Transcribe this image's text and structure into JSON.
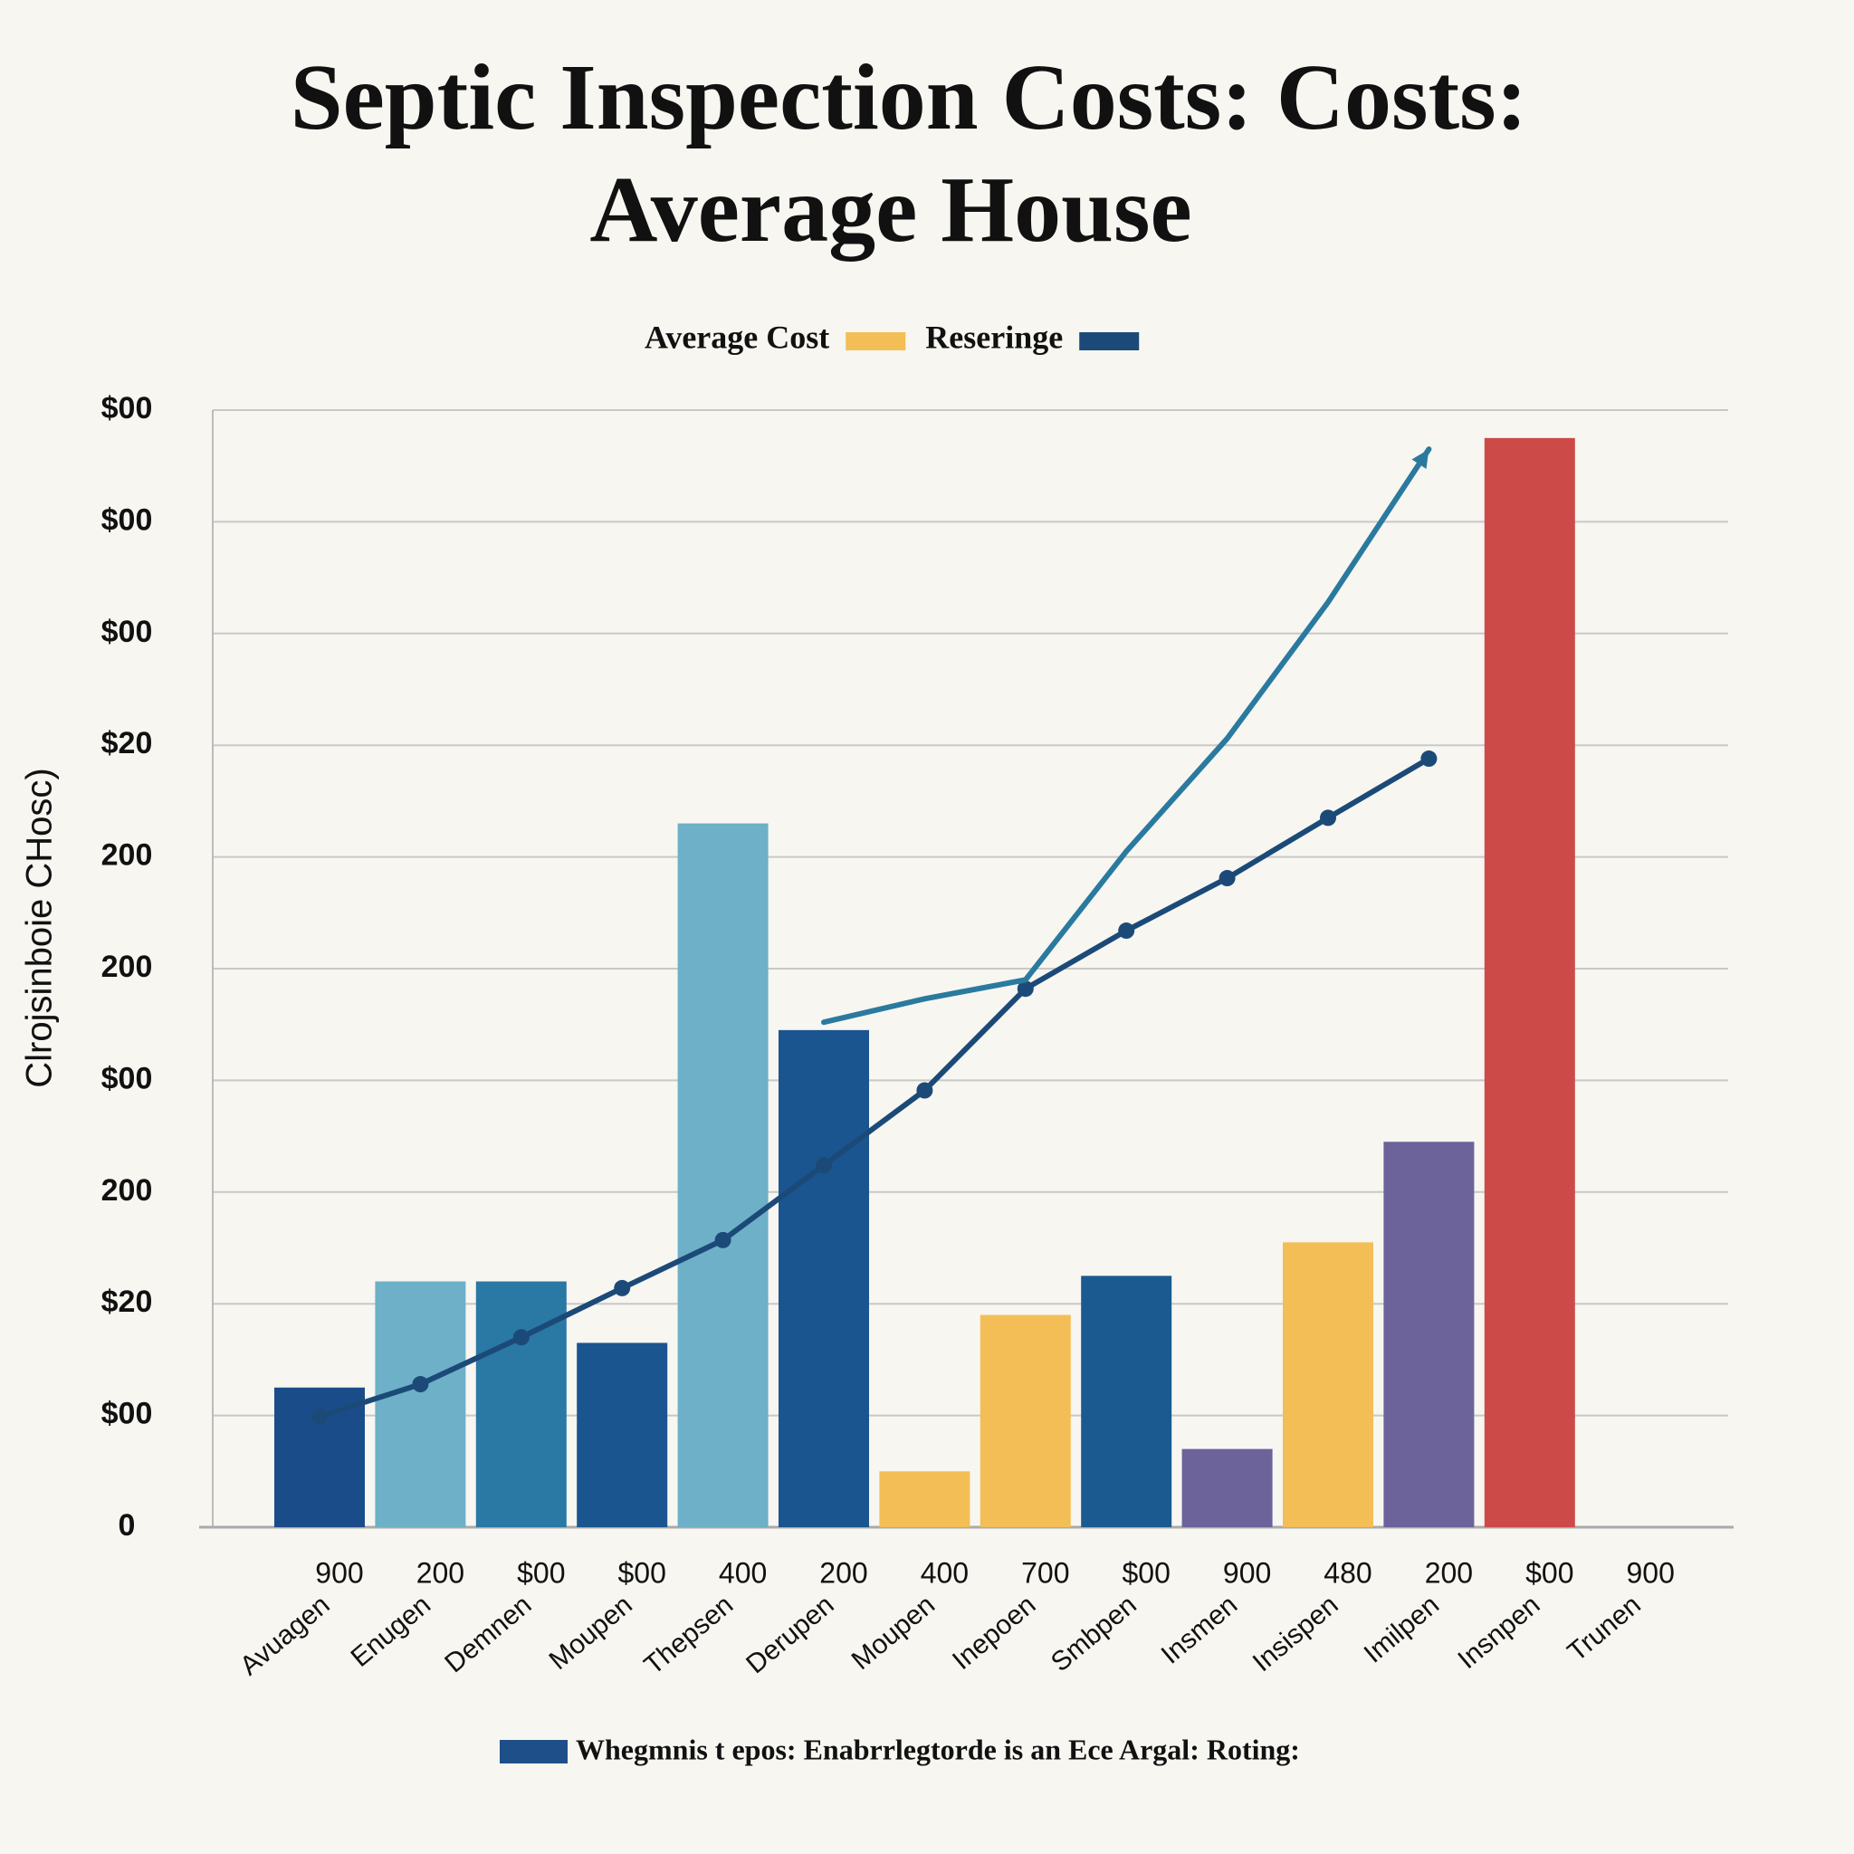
{
  "chart_data": {
    "type": "bar",
    "title": [
      "Septic Inspection Costs: Costs:",
      "Average House"
    ],
    "y_label": "Clrojsinboie CHosc)",
    "footer": "Whegmnis t epos: Enabrrlegtorde is an Ece Argal: Roting:",
    "footer_color": "#1f4f88",
    "categories": [
      "Avuagen",
      "Enugen",
      "Demnen",
      "Moupen",
      "Thepsen",
      "Derupen",
      "Moupen",
      "Inepoen",
      "Smbpen",
      "Insmen",
      "Insispen",
      "Imilpen",
      "Insnpen",
      "Trunen"
    ],
    "x_sublabels": [
      "900",
      "200",
      "$00",
      "$00",
      "400",
      "200",
      "400",
      "700",
      "$00",
      "900",
      "480",
      "200",
      "$00",
      "900"
    ],
    "ylim": [
      0,
      10
    ],
    "yticks": [
      {
        "value": 0,
        "label": "0"
      },
      {
        "value": 1,
        "label": "$00"
      },
      {
        "value": 2,
        "label": "$20"
      },
      {
        "value": 3,
        "label": "200"
      },
      {
        "value": 4,
        "label": "$00"
      },
      {
        "value": 5,
        "label": "200"
      },
      {
        "value": 6,
        "label": "200"
      },
      {
        "value": 7,
        "label": "$20"
      },
      {
        "value": 8,
        "label": "$00"
      },
      {
        "value": 9,
        "label": "$00"
      },
      {
        "value": 10,
        "label": "$00"
      }
    ],
    "grid": true,
    "series": [
      {
        "name": "Average Cost",
        "color": "#f3be55",
        "bar_colors": [
          "#1b4c8a",
          "#6db0c8",
          "#2a78a4",
          "#1b5590",
          "#6db0c8",
          "#1b5590",
          "#f3be55",
          "#f3be55",
          "#1b5a90",
          "#6b6399",
          "#f3be55",
          "#6b6399",
          "#cc4a48",
          null
        ],
        "values": [
          1.25,
          2.2,
          2.2,
          1.65,
          6.3,
          4.45,
          0.5,
          1.9,
          2.25,
          0.7,
          2.55,
          3.45,
          9.75,
          null
        ]
      },
      {
        "name": "Reseringe",
        "color": "#1c4a78",
        "type": "line",
        "values": [
          0.99,
          1.28,
          1.7,
          2.14,
          2.57,
          3.24,
          3.91,
          4.82,
          5.34,
          5.81,
          6.35,
          6.88,
          null,
          null
        ]
      },
      {
        "color": "#2a7aa0",
        "type": "line",
        "arrow": true,
        "values": [
          null,
          null,
          null,
          null,
          null,
          4.52,
          4.73,
          4.9,
          6.05,
          7.06,
          8.28,
          9.65,
          null,
          null
        ]
      }
    ]
  }
}
